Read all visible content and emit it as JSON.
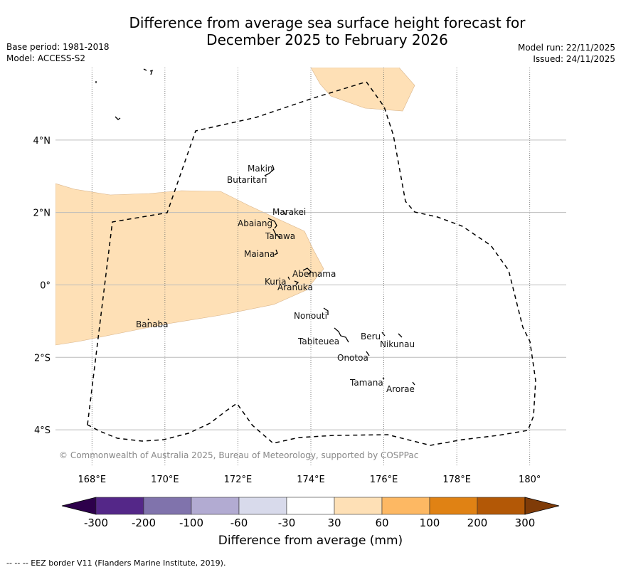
{
  "title": {
    "line1": "Difference from average sea surface height forecast for",
    "line2": "December 2025 to February 2026"
  },
  "meta": {
    "base_period": "Base period: 1981-2018",
    "model": "Model: ACCESS-S2",
    "model_run": "Model run: 22/11/2025",
    "issued": "Issued: 24/11/2025"
  },
  "map": {
    "lon_range": [
      167,
      181
    ],
    "lat_range": [
      -5,
      6
    ],
    "lon_ticks": [
      {
        "value": 168,
        "label": "168°E"
      },
      {
        "value": 170,
        "label": "170°E"
      },
      {
        "value": 172,
        "label": "172°E"
      },
      {
        "value": 174,
        "label": "174°E"
      },
      {
        "value": 176,
        "label": "176°E"
      },
      {
        "value": 178,
        "label": "178°E"
      },
      {
        "value": 180,
        "label": "180°"
      }
    ],
    "lat_ticks": [
      {
        "value": 4,
        "label": "4°N"
      },
      {
        "value": 2,
        "label": "2°N"
      },
      {
        "value": 0,
        "label": "0°"
      },
      {
        "value": -2,
        "label": "2°S"
      },
      {
        "value": -4,
        "label": "4°S"
      }
    ],
    "copyright": "© Commonwealth of Australia 2025, Bureau of Meteorology, supported by COSPPac",
    "anomaly_color": "#fee0b6",
    "islands": [
      {
        "name": "Makin",
        "lon": 172.95,
        "lat": 3.1
      },
      {
        "name": "Butaritari",
        "lon": 172.8,
        "lat": 3.1
      },
      {
        "name": "Marakei",
        "lon": 173.3,
        "lat": 2.0
      },
      {
        "name": "Abaiang",
        "lon": 172.9,
        "lat": 1.8
      },
      {
        "name": "Tarawa",
        "lon": 173.0,
        "lat": 1.4
      },
      {
        "name": "Maiana",
        "lon": 173.0,
        "lat": 0.95
      },
      {
        "name": "Abemama",
        "lon": 173.85,
        "lat": 0.45
      },
      {
        "name": "Kuria",
        "lon": 173.4,
        "lat": 0.22
      },
      {
        "name": "Aranuka",
        "lon": 173.6,
        "lat": 0.15
      },
      {
        "name": "Nonouti",
        "lon": 174.4,
        "lat": -0.65
      },
      {
        "name": "Tabiteuea",
        "lon": 174.8,
        "lat": -1.3
      },
      {
        "name": "Beru",
        "lon": 176.0,
        "lat": -1.35
      },
      {
        "name": "Nikunau",
        "lon": 176.45,
        "lat": -1.35
      },
      {
        "name": "Onotoa",
        "lon": 175.55,
        "lat": -1.85
      },
      {
        "name": "Tamana",
        "lon": 176.0,
        "lat": -2.5
      },
      {
        "name": "Arorae",
        "lon": 176.8,
        "lat": -2.65
      },
      {
        "name": "Banaba",
        "lon": 169.5,
        "lat": -0.9
      }
    ]
  },
  "colorbar": {
    "title": "Difference from average (mm)",
    "tick_labels": [
      "-300",
      "-200",
      "-100",
      "-60",
      "-30",
      "30",
      "60",
      "100",
      "200",
      "300"
    ],
    "colors": [
      "#2d004b",
      "#542788",
      "#8073ac",
      "#b2abd2",
      "#d8daeb",
      "#ffffff",
      "#fee0b6",
      "#fdb863",
      "#e08214",
      "#b35806",
      "#7f3b08"
    ]
  },
  "footer": "--  --  -- EEZ border V11 (Flanders Marine Institute, 2019)."
}
